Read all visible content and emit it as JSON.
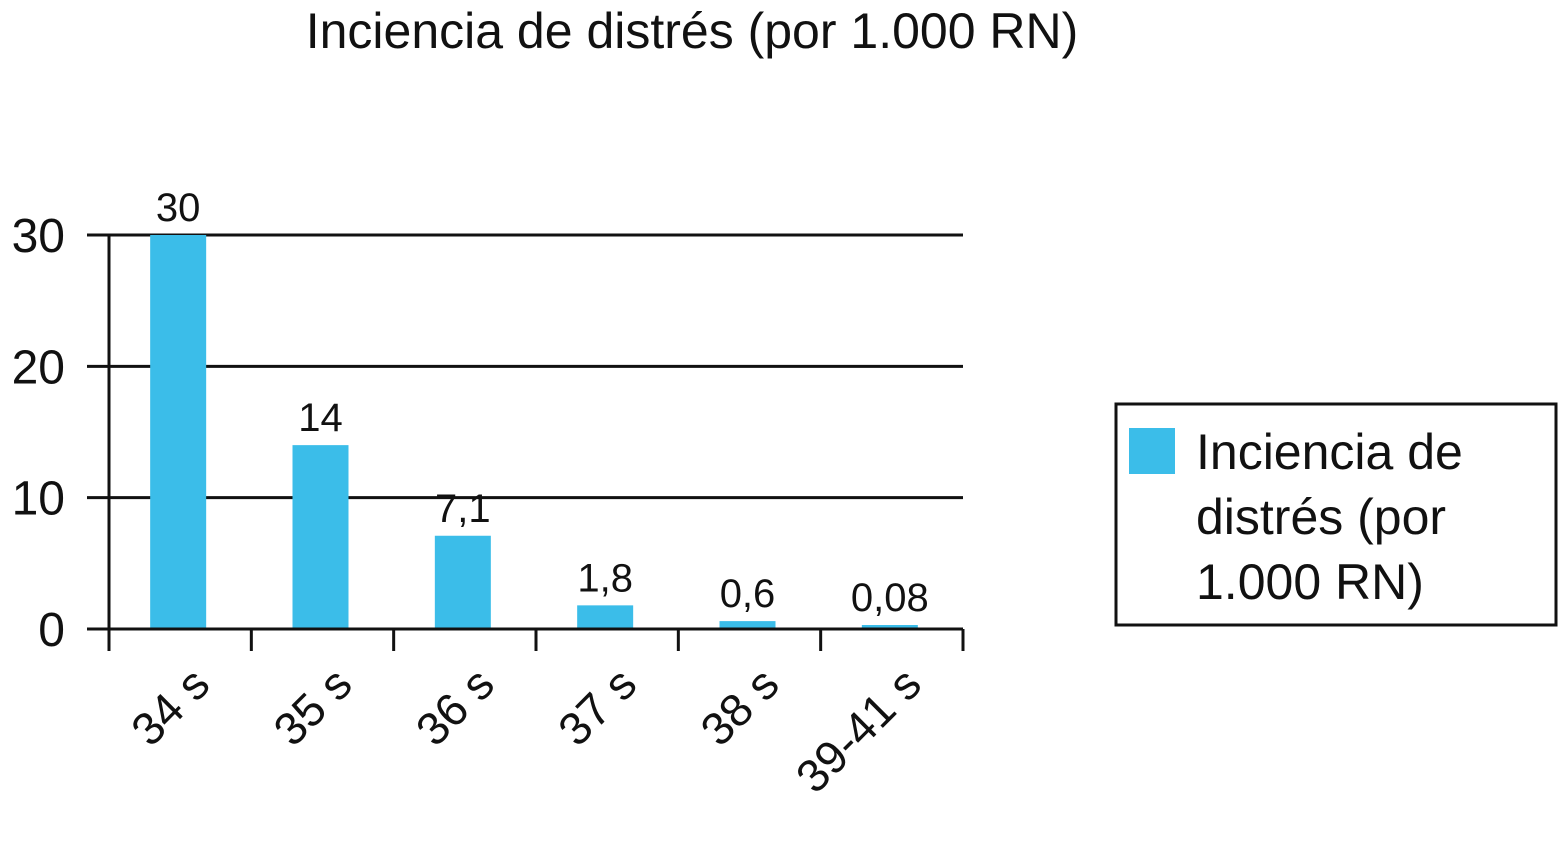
{
  "chart_data": {
    "type": "bar",
    "title": "Inciencia de distrés (por 1.000 RN)",
    "xlabel": "",
    "ylabel": "",
    "categories": [
      "34 s",
      "35 s",
      "36 s",
      "37 s",
      "38 s",
      "39-41 s"
    ],
    "series": [
      {
        "name": "Inciencia de distrés (por 1.000 RN)",
        "values": [
          30,
          14,
          7.1,
          1.8,
          0.6,
          0.08
        ],
        "data_labels": [
          "30",
          "14",
          "7,1",
          "1,8",
          "0,6",
          "0,08"
        ]
      }
    ],
    "yticks": [
      0,
      10,
      20,
      30
    ],
    "ytick_labels": [
      "0",
      "10",
      "20",
      "30"
    ],
    "ylim": [
      0,
      30
    ],
    "grid": true,
    "legend": {
      "position": "right",
      "lines": [
        "Inciencia de",
        "distrés (por",
        "1.000 RN)"
      ]
    },
    "colors": {
      "bar": "#3bbde9",
      "axis": "#111111",
      "grid": "#111111"
    }
  }
}
